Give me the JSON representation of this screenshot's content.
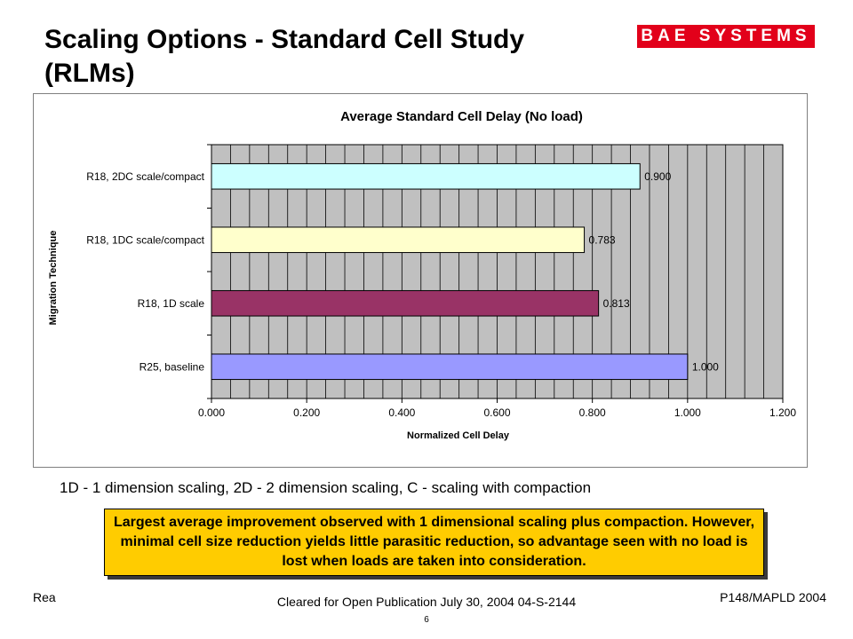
{
  "slide": {
    "title_line1": "Scaling Options - Standard Cell Study",
    "title_line2": "(RLMs)",
    "logo_text": "BAE SYSTEMS",
    "note": "1D - 1 dimension scaling, 2D - 2 dimension scaling, C - scaling with compaction",
    "callout": "Largest average improvement observed with 1 dimensional scaling plus compaction.  However, minimal cell size reduction yields little parasitic reduction, so advantage seen with no load is lost when loads are taken into consideration.",
    "footer_left": "Rea",
    "footer_center": "Cleared for Open Publication July 30, 2004 04-S-2144",
    "footer_right": "P148/MAPLD 2004",
    "page_number": "6"
  },
  "colors": {
    "logo_red": "#e2001a",
    "callout_yellow": "#ffcc00",
    "plot_background": "#c0c0c0"
  },
  "chart_data": {
    "type": "bar",
    "orientation": "horizontal",
    "title": "Average Standard Cell Delay (No load)",
    "xlabel": "Normalized Cell Delay",
    "ylabel": "Migration Technique",
    "categories": [
      "R25, baseline",
      "R18, 1D scale",
      "R18, 1DC scale/compact",
      "R18, 2DC scale/compact"
    ],
    "values": [
      1.0,
      0.813,
      0.783,
      0.9
    ],
    "value_labels": [
      "1.000",
      "0.813",
      "0.783",
      "0.900"
    ],
    "bar_colors": [
      "#9999ff",
      "#993366",
      "#ffffcc",
      "#ccffff"
    ],
    "xlim": [
      0,
      1.2
    ],
    "xticks": [
      0,
      0.2,
      0.4,
      0.6,
      0.8,
      1.0,
      1.2
    ],
    "xtick_labels": [
      "0.000",
      "0.200",
      "0.400",
      "0.600",
      "0.800",
      "1.000",
      "1.200"
    ],
    "grid": "vertical",
    "legend": "none"
  }
}
